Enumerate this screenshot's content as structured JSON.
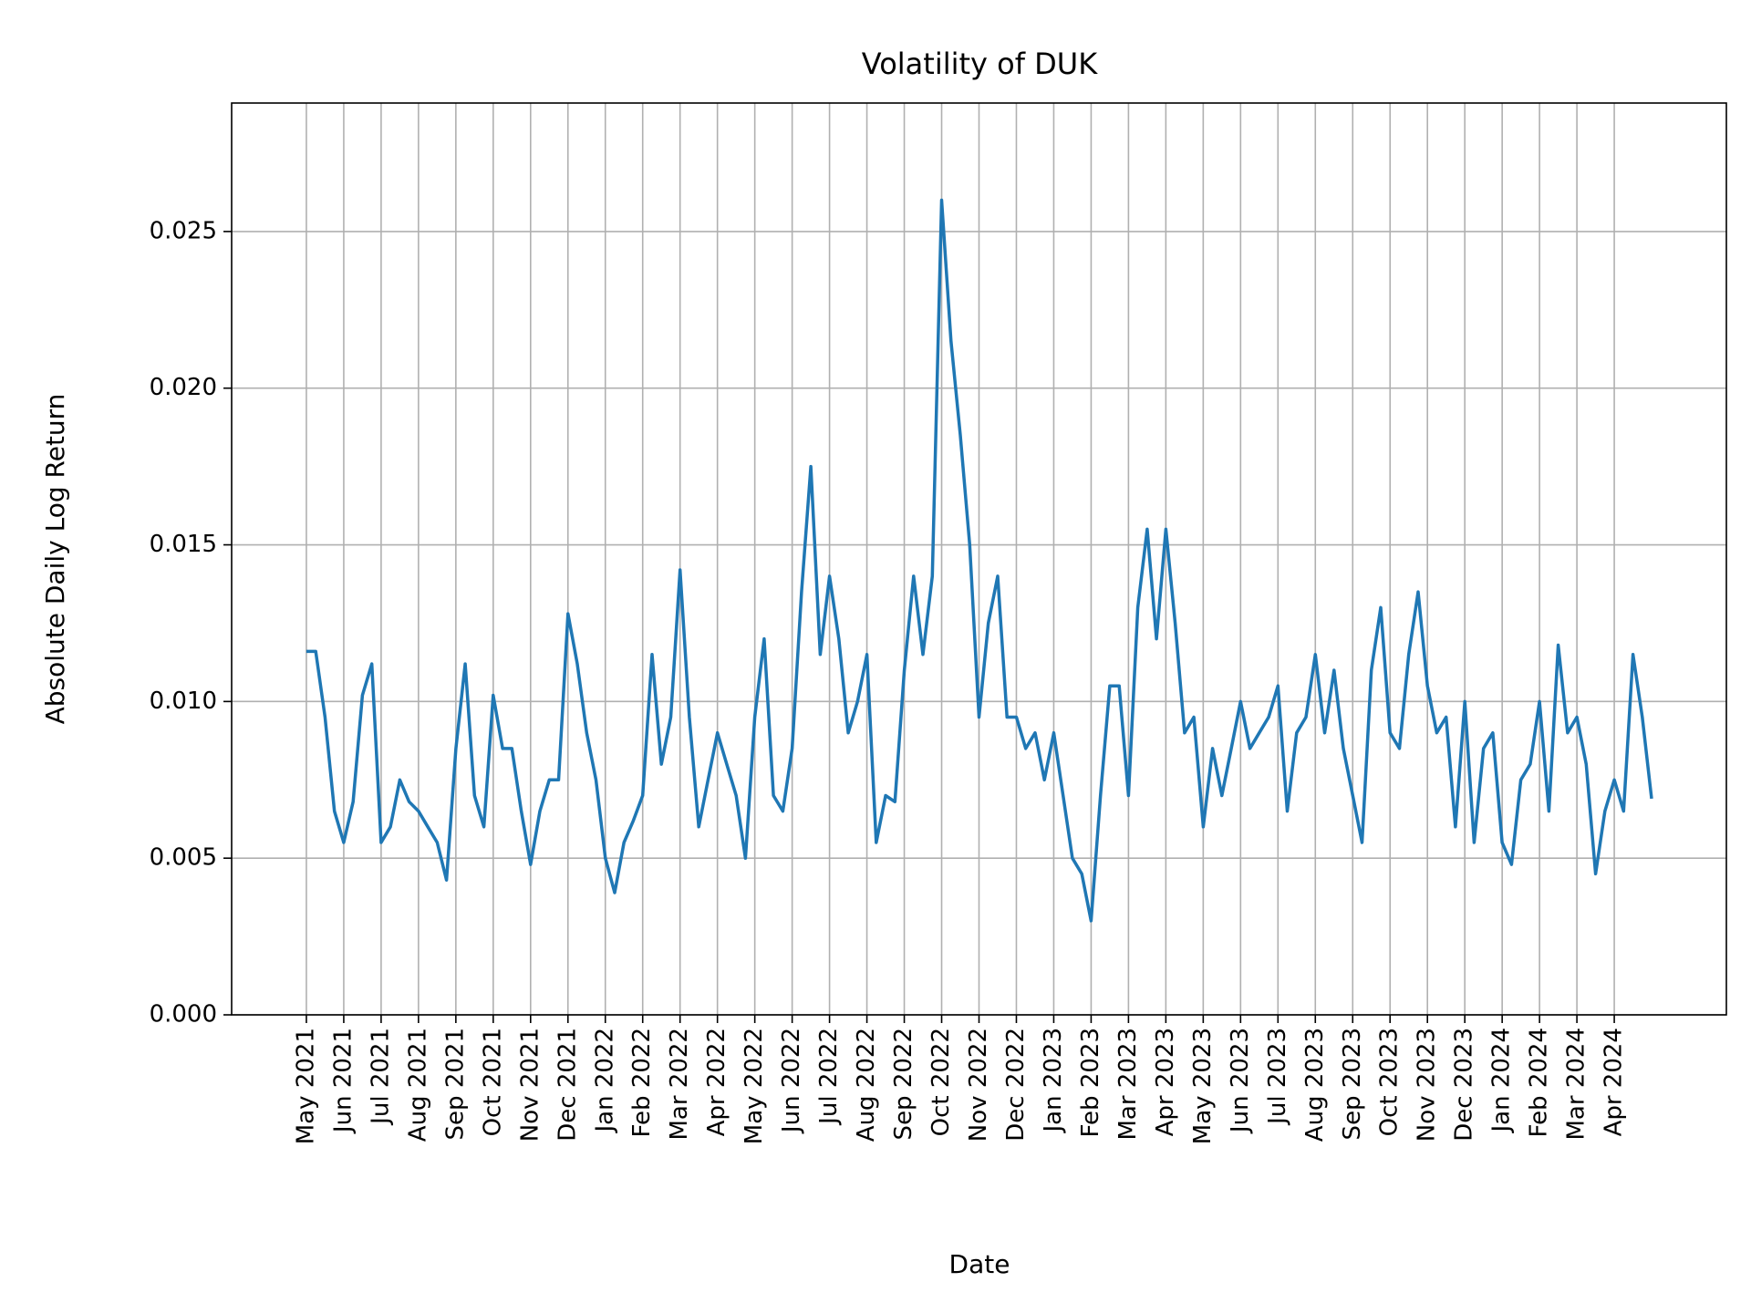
{
  "chart_data": {
    "type": "line",
    "title": "Volatility of DUK",
    "xlabel": "Date",
    "ylabel": "Absolute Daily Log Return",
    "color": "#1f77b4",
    "grid": true,
    "x": [
      "2021-05",
      "2021-05",
      "2021-05",
      "2021-05",
      "2021-06",
      "2021-06",
      "2021-06",
      "2021-06",
      "2021-07",
      "2021-07",
      "2021-07",
      "2021-07",
      "2021-08",
      "2021-08",
      "2021-08",
      "2021-08",
      "2021-09",
      "2021-09",
      "2021-09",
      "2021-09",
      "2021-10",
      "2021-10",
      "2021-10",
      "2021-10",
      "2021-11",
      "2021-11",
      "2021-11",
      "2021-11",
      "2021-12",
      "2021-12",
      "2021-12",
      "2021-12",
      "2022-01",
      "2022-01",
      "2022-01",
      "2022-01",
      "2022-02",
      "2022-02",
      "2022-02",
      "2022-02",
      "2022-03",
      "2022-03",
      "2022-03",
      "2022-03",
      "2022-04",
      "2022-04",
      "2022-04",
      "2022-04",
      "2022-05",
      "2022-05",
      "2022-05",
      "2022-05",
      "2022-06",
      "2022-06",
      "2022-06",
      "2022-06",
      "2022-07",
      "2022-07",
      "2022-07",
      "2022-07",
      "2022-08",
      "2022-08",
      "2022-08",
      "2022-08",
      "2022-09",
      "2022-09",
      "2022-09",
      "2022-09",
      "2022-10",
      "2022-10",
      "2022-10",
      "2022-10",
      "2022-11",
      "2022-11",
      "2022-11",
      "2022-11",
      "2022-12",
      "2022-12",
      "2022-12",
      "2022-12",
      "2023-01",
      "2023-01",
      "2023-01",
      "2023-01",
      "2023-02",
      "2023-02",
      "2023-02",
      "2023-02",
      "2023-03",
      "2023-03",
      "2023-03",
      "2023-03",
      "2023-04",
      "2023-04",
      "2023-04",
      "2023-04",
      "2023-05",
      "2023-05",
      "2023-05",
      "2023-05",
      "2023-06",
      "2023-06",
      "2023-06",
      "2023-06",
      "2023-07",
      "2023-07",
      "2023-07",
      "2023-07",
      "2023-08",
      "2023-08",
      "2023-08",
      "2023-08",
      "2023-09",
      "2023-09",
      "2023-09",
      "2023-09",
      "2023-10",
      "2023-10",
      "2023-10",
      "2023-10",
      "2023-11",
      "2023-11",
      "2023-11",
      "2023-11",
      "2023-12",
      "2023-12",
      "2023-12",
      "2023-12",
      "2024-01",
      "2024-01",
      "2024-01",
      "2024-01",
      "2024-02",
      "2024-02",
      "2024-02",
      "2024-02",
      "2024-03",
      "2024-03",
      "2024-03",
      "2024-03",
      "2024-04",
      "2024-04",
      "2024-04",
      "2024-04",
      "2024-05"
    ],
    "values": [
      0.0116,
      0.0116,
      0.0095,
      0.0065,
      0.0055,
      0.0068,
      0.0102,
      0.0112,
      0.0055,
      0.006,
      0.0075,
      0.0068,
      0.0065,
      0.006,
      0.0055,
      0.0043,
      0.0085,
      0.0112,
      0.007,
      0.006,
      0.0102,
      0.0085,
      0.0085,
      0.0065,
      0.0048,
      0.0065,
      0.0075,
      0.0075,
      0.0128,
      0.0112,
      0.009,
      0.0075,
      0.005,
      0.0039,
      0.0055,
      0.0062,
      0.007,
      0.0115,
      0.008,
      0.0095,
      0.0142,
      0.0095,
      0.006,
      0.0075,
      0.009,
      0.008,
      0.007,
      0.005,
      0.0095,
      0.012,
      0.007,
      0.0065,
      0.0085,
      0.0135,
      0.0175,
      0.0115,
      0.014,
      0.012,
      0.009,
      0.01,
      0.0115,
      0.0055,
      0.007,
      0.0068,
      0.011,
      0.014,
      0.0115,
      0.014,
      0.026,
      0.0215,
      0.0185,
      0.015,
      0.0095,
      0.0125,
      0.014,
      0.0095,
      0.0095,
      0.0085,
      0.009,
      0.0075,
      0.009,
      0.007,
      0.005,
      0.0045,
      0.003,
      0.007,
      0.0105,
      0.0105,
      0.007,
      0.013,
      0.0155,
      0.012,
      0.0155,
      0.0125,
      0.009,
      0.0095,
      0.006,
      0.0085,
      0.007,
      0.0085,
      0.01,
      0.0085,
      0.009,
      0.0095,
      0.0105,
      0.0065,
      0.009,
      0.0095,
      0.0115,
      0.009,
      0.011,
      0.0085,
      0.007,
      0.0055,
      0.011,
      0.013,
      0.009,
      0.0085,
      0.0115,
      0.0135,
      0.0105,
      0.009,
      0.0095,
      0.006,
      0.01,
      0.0055,
      0.0085,
      0.009,
      0.0055,
      0.0048,
      0.0075,
      0.008,
      0.01,
      0.0065,
      0.0118,
      0.009,
      0.0095,
      0.008,
      0.0045,
      0.0065,
      0.0075,
      0.0065,
      0.0115,
      0.0095,
      0.0069
    ],
    "xlim": [
      "2021-03",
      "2024-07"
    ],
    "xticks": [
      {
        "value": "2021-05",
        "label": "May 2021"
      },
      {
        "value": "2021-06",
        "label": "Jun 2021"
      },
      {
        "value": "2021-07",
        "label": "Jul 2021"
      },
      {
        "value": "2021-08",
        "label": "Aug 2021"
      },
      {
        "value": "2021-09",
        "label": "Sep 2021"
      },
      {
        "value": "2021-10",
        "label": "Oct 2021"
      },
      {
        "value": "2021-11",
        "label": "Nov 2021"
      },
      {
        "value": "2021-12",
        "label": "Dec 2021"
      },
      {
        "value": "2022-01",
        "label": "Jan 2022"
      },
      {
        "value": "2022-02",
        "label": "Feb 2022"
      },
      {
        "value": "2022-03",
        "label": "Mar 2022"
      },
      {
        "value": "2022-04",
        "label": "Apr 2022"
      },
      {
        "value": "2022-05",
        "label": "May 2022"
      },
      {
        "value": "2022-06",
        "label": "Jun 2022"
      },
      {
        "value": "2022-07",
        "label": "Jul 2022"
      },
      {
        "value": "2022-08",
        "label": "Aug 2022"
      },
      {
        "value": "2022-09",
        "label": "Sep 2022"
      },
      {
        "value": "2022-10",
        "label": "Oct 2022"
      },
      {
        "value": "2022-11",
        "label": "Nov 2022"
      },
      {
        "value": "2022-12",
        "label": "Dec 2022"
      },
      {
        "value": "2023-01",
        "label": "Jan 2023"
      },
      {
        "value": "2023-02",
        "label": "Feb 2023"
      },
      {
        "value": "2023-03",
        "label": "Mar 2023"
      },
      {
        "value": "2023-04",
        "label": "Apr 2023"
      },
      {
        "value": "2023-05",
        "label": "May 2023"
      },
      {
        "value": "2023-06",
        "label": "Jun 2023"
      },
      {
        "value": "2023-07",
        "label": "Jul 2023"
      },
      {
        "value": "2023-08",
        "label": "Aug 2023"
      },
      {
        "value": "2023-09",
        "label": "Sep 2023"
      },
      {
        "value": "2023-10",
        "label": "Oct 2023"
      },
      {
        "value": "2023-11",
        "label": "Nov 2023"
      },
      {
        "value": "2023-12",
        "label": "Dec 2023"
      },
      {
        "value": "2024-01",
        "label": "Jan 2024"
      },
      {
        "value": "2024-02",
        "label": "Feb 2024"
      },
      {
        "value": "2024-03",
        "label": "Mar 2024"
      },
      {
        "value": "2024-04",
        "label": "Apr 2024"
      }
    ],
    "ylim": [
      0,
      0.0291
    ],
    "yticks": [
      {
        "value": 0,
        "label": "0.000"
      },
      0.005,
      {
        "value": 0.01,
        "label": "0.010"
      },
      0.015,
      {
        "value": 0.02,
        "label": "0.020"
      },
      0.025
    ]
  }
}
